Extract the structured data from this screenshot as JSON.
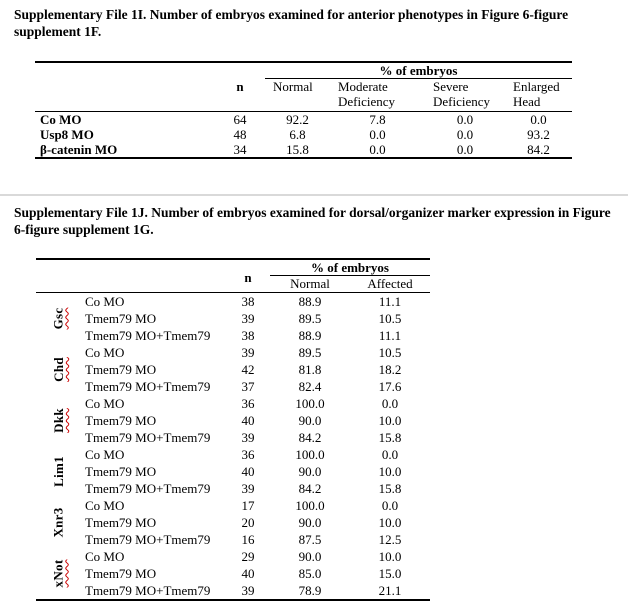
{
  "colors": {
    "text": "#000000",
    "rule": "#000000",
    "spellcheck_red": "#cc0000",
    "page_divider": "#d9d9d9"
  },
  "section1": {
    "title": "Supplementary File 1I. Number of embryos examined for anterior phenotypes in Figure 6-figure supplement 1F.",
    "table": {
      "n_header": "n",
      "spanner": "% of embryos",
      "columns": [
        "Normal",
        "Moderate Deficiency",
        "Severe Deficiency",
        "Enlarged Head"
      ],
      "rows": [
        {
          "label": "Co MO",
          "n": "64",
          "values": [
            "92.2",
            "7.8",
            "0.0",
            "0.0"
          ]
        },
        {
          "label": "Usp8 MO",
          "n": "48",
          "values": [
            "6.8",
            "0.0",
            "0.0",
            "93.2"
          ]
        },
        {
          "label": "β-catenin MO",
          "n": "34",
          "values": [
            "15.8",
            "0.0",
            "0.0",
            "84.2"
          ]
        }
      ]
    }
  },
  "section2": {
    "title": "Supplementary File 1J. Number of embryos examined for dorsal/organizer marker expression in Figure 6-figure supplement 1G.",
    "table": {
      "n_header": "n",
      "spanner": "% of embryos",
      "columns": [
        "Normal",
        "Affected"
      ],
      "groups": [
        {
          "gene": "Gsc",
          "spellcheck_underline": true,
          "rows": [
            {
              "treatment": "Co MO",
              "n": "38",
              "values": [
                "88.9",
                "11.1"
              ]
            },
            {
              "treatment": "Tmem79 MO",
              "n": "39",
              "values": [
                "89.5",
                "10.5"
              ]
            },
            {
              "treatment": "Tmem79 MO+Tmem79",
              "n": "38",
              "values": [
                "88.9",
                "11.1"
              ]
            }
          ]
        },
        {
          "gene": "Chd",
          "spellcheck_underline": true,
          "rows": [
            {
              "treatment": "Co MO",
              "n": "39",
              "values": [
                "89.5",
                "10.5"
              ]
            },
            {
              "treatment": "Tmem79 MO",
              "n": "42",
              "values": [
                "81.8",
                "18.2"
              ]
            },
            {
              "treatment": "Tmem79 MO+Tmem79",
              "n": "37",
              "values": [
                "82.4",
                "17.6"
              ]
            }
          ]
        },
        {
          "gene": "Dkk",
          "spellcheck_underline": true,
          "rows": [
            {
              "treatment": "Co MO",
              "n": "36",
              "values": [
                "100.0",
                "0.0"
              ]
            },
            {
              "treatment": "Tmem79 MO",
              "n": "40",
              "values": [
                "90.0",
                "10.0"
              ]
            },
            {
              "treatment": "Tmem79 MO+Tmem79",
              "n": "39",
              "values": [
                "84.2",
                "15.8"
              ]
            }
          ]
        },
        {
          "gene": "Lim1",
          "spellcheck_underline": false,
          "rows": [
            {
              "treatment": "Co MO",
              "n": "36",
              "values": [
                "100.0",
                "0.0"
              ]
            },
            {
              "treatment": "Tmem79 MO",
              "n": "40",
              "values": [
                "90.0",
                "10.0"
              ]
            },
            {
              "treatment": "Tmem79 MO+Tmem79",
              "n": "39",
              "values": [
                "84.2",
                "15.8"
              ]
            }
          ]
        },
        {
          "gene": "Xnr3",
          "spellcheck_underline": false,
          "rows": [
            {
              "treatment": "Co MO",
              "n": "17",
              "values": [
                "100.0",
                "0.0"
              ]
            },
            {
              "treatment": "Tmem79 MO",
              "n": "20",
              "values": [
                "90.0",
                "10.0"
              ]
            },
            {
              "treatment": "Tmem79 MO+Tmem79",
              "n": "16",
              "values": [
                "87.5",
                "12.5"
              ]
            }
          ]
        },
        {
          "gene": "xNot",
          "spellcheck_underline": true,
          "rows": [
            {
              "treatment": "Co MO",
              "n": "29",
              "values": [
                "90.0",
                "10.0"
              ]
            },
            {
              "treatment": "Tmem79 MO",
              "n": "40",
              "values": [
                "85.0",
                "15.0"
              ]
            },
            {
              "treatment": "Tmem79 MO+Tmem79",
              "n": "39",
              "values": [
                "78.9",
                "21.1"
              ]
            }
          ]
        }
      ]
    }
  }
}
